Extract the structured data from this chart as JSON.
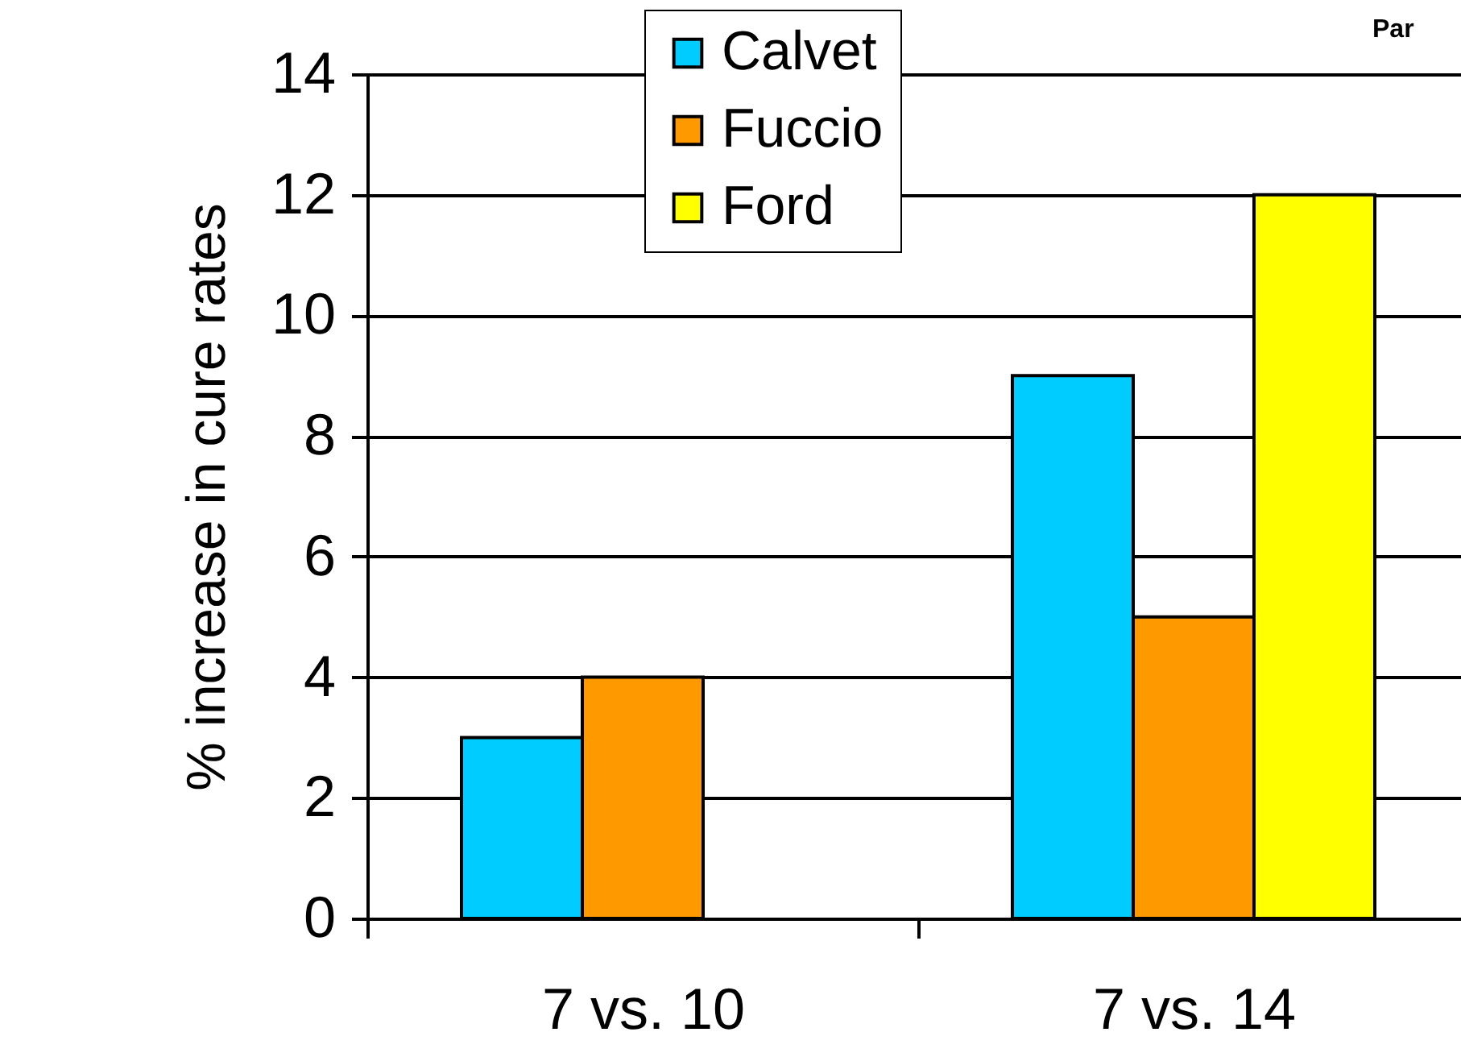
{
  "chart_data": {
    "type": "bar",
    "title": "Par",
    "ylabel": "% increase in cure rates",
    "categories": [
      "7 vs. 10",
      "7 vs. 14"
    ],
    "series": [
      {
        "name": "Calvet",
        "color": "#00ccff",
        "values": [
          3,
          9
        ]
      },
      {
        "name": "Fuccio",
        "color": "#ff9900",
        "values": [
          4,
          5
        ]
      },
      {
        "name": "Ford",
        "color": "#ffff00",
        "values": [
          null,
          12
        ]
      }
    ],
    "ylim": [
      0,
      14
    ],
    "yticks": [
      0,
      2,
      4,
      6,
      8,
      10,
      12,
      14
    ],
    "grid": "y",
    "legend": "top"
  }
}
